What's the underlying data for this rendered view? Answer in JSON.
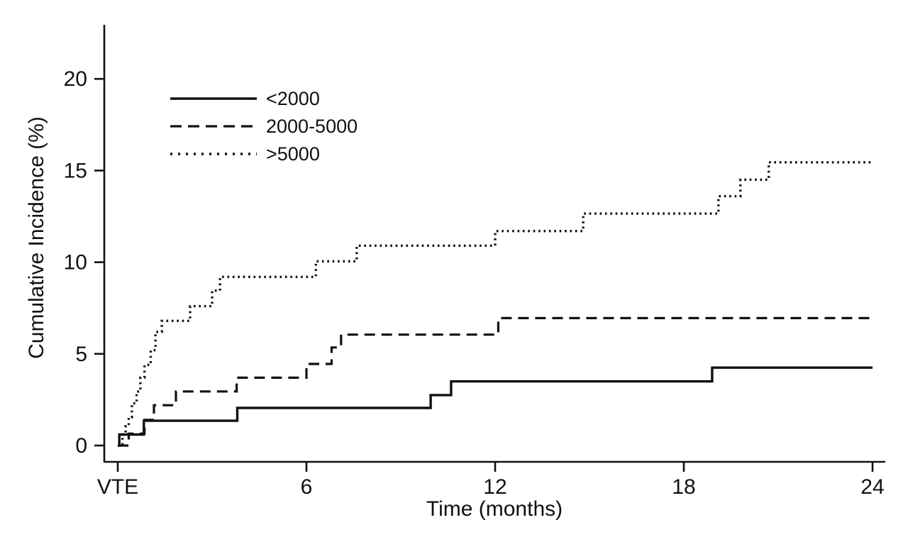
{
  "figure": {
    "background": "#ffffff",
    "axis_color": "#111111",
    "line_color": "#111111"
  },
  "chart_data": {
    "type": "line",
    "subtype": "step-function-cumulative-incidence",
    "title": "",
    "xlabel": "Time (months)",
    "ylabel": "Cumulative Incidence (%)",
    "xlim": [
      0,
      24
    ],
    "ylim": [
      0,
      23
    ],
    "grid": false,
    "legend_position": "upper-left-inside",
    "x_ticks": [
      {
        "value": 0,
        "label": "VTE"
      },
      {
        "value": 6,
        "label": "6"
      },
      {
        "value": 12,
        "label": "12"
      },
      {
        "value": 18,
        "label": "18"
      },
      {
        "value": 24,
        "label": "24"
      }
    ],
    "y_ticks": [
      {
        "value": 0,
        "label": "0"
      },
      {
        "value": 5,
        "label": "5"
      },
      {
        "value": 10,
        "label": "10"
      },
      {
        "value": 15,
        "label": "15"
      },
      {
        "value": 20,
        "label": "20"
      }
    ],
    "series": [
      {
        "name": "<2000",
        "style": "solid",
        "steps": [
          [
            0,
            0
          ],
          [
            0.05,
            0.6
          ],
          [
            0.83,
            1.35
          ],
          [
            3.8,
            2.05
          ],
          [
            9.95,
            2.75
          ],
          [
            10.6,
            3.5
          ],
          [
            18.9,
            4.25
          ],
          [
            24,
            4.25
          ]
        ]
      },
      {
        "name": "2000-5000",
        "style": "dashed",
        "steps": [
          [
            0,
            0
          ],
          [
            0.35,
            0.65
          ],
          [
            0.85,
            1.4
          ],
          [
            1.15,
            2.2
          ],
          [
            1.85,
            2.95
          ],
          [
            3.78,
            3.7
          ],
          [
            6.0,
            4.45
          ],
          [
            6.8,
            5.35
          ],
          [
            7.1,
            6.05
          ],
          [
            12.1,
            6.95
          ],
          [
            24,
            6.95
          ]
        ]
      },
      {
        "name": ">5000",
        "style": "dotted",
        "steps": [
          [
            0,
            0
          ],
          [
            0.15,
            0.6
          ],
          [
            0.25,
            1.05
          ],
          [
            0.35,
            1.55
          ],
          [
            0.45,
            2.3
          ],
          [
            0.6,
            2.95
          ],
          [
            0.72,
            3.7
          ],
          [
            0.85,
            4.4
          ],
          [
            1.05,
            5.2
          ],
          [
            1.2,
            6.2
          ],
          [
            1.4,
            6.8
          ],
          [
            2.3,
            7.6
          ],
          [
            3.0,
            8.45
          ],
          [
            3.25,
            9.2
          ],
          [
            6.3,
            10.05
          ],
          [
            7.6,
            10.9
          ],
          [
            12.0,
            11.7
          ],
          [
            14.8,
            12.65
          ],
          [
            19.1,
            13.6
          ],
          [
            19.8,
            14.5
          ],
          [
            20.7,
            15.45
          ],
          [
            24,
            15.45
          ]
        ]
      }
    ]
  }
}
